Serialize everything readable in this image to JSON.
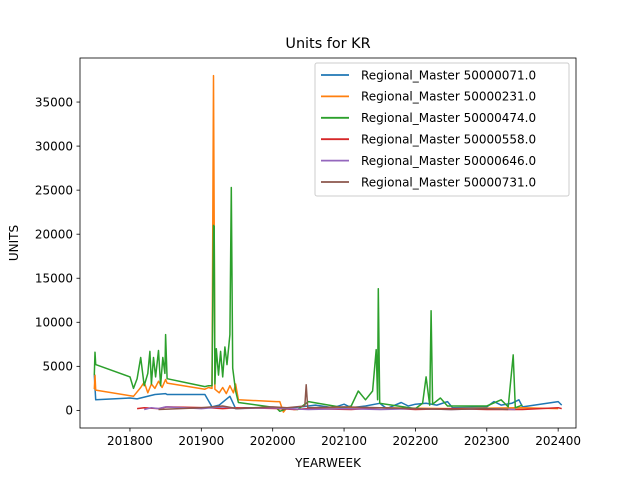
{
  "chart_data": {
    "type": "line",
    "title": "Units for KR",
    "xlabel": "YEARWEEK",
    "ylabel": "UNITS",
    "xlim": [
      201730,
      202425
    ],
    "ylim": [
      -2000,
      40000
    ],
    "xticks": [
      201800,
      201900,
      202000,
      202100,
      202200,
      202300,
      202400
    ],
    "yticks": [
      0,
      5000,
      10000,
      15000,
      20000,
      25000,
      30000,
      35000
    ],
    "grid": false,
    "legend_position": "top-right",
    "series": [
      {
        "name": "Regional_Master 50000071.0",
        "color": "#1f77b4",
        "points": [
          [
            201750,
            4000
          ],
          [
            201752,
            1200
          ],
          [
            201800,
            1400
          ],
          [
            201810,
            1300
          ],
          [
            201835,
            1800
          ],
          [
            201850,
            1900
          ],
          [
            201852,
            1800
          ],
          [
            201905,
            1800
          ],
          [
            201915,
            400
          ],
          [
            201925,
            600
          ],
          [
            201940,
            1600
          ],
          [
            201948,
            200
          ],
          [
            201960,
            300
          ],
          [
            202000,
            300
          ],
          [
            202010,
            200
          ],
          [
            202040,
            400
          ],
          [
            202060,
            600
          ],
          [
            202085,
            300
          ],
          [
            202100,
            700
          ],
          [
            202110,
            300
          ],
          [
            202130,
            500
          ],
          [
            202150,
            800
          ],
          [
            202160,
            200
          ],
          [
            202180,
            900
          ],
          [
            202190,
            500
          ],
          [
            202200,
            700
          ],
          [
            202215,
            800
          ],
          [
            202230,
            600
          ],
          [
            202245,
            1000
          ],
          [
            202252,
            300
          ],
          [
            202300,
            400
          ],
          [
            202310,
            1000
          ],
          [
            202320,
            600
          ],
          [
            202335,
            800
          ],
          [
            202345,
            1200
          ],
          [
            202350,
            400
          ],
          [
            202400,
            1000
          ],
          [
            202405,
            600
          ]
        ]
      },
      {
        "name": "Regional_Master 50000231.0",
        "color": "#ff7f0e",
        "points": [
          [
            201750,
            2400
          ],
          [
            201751,
            4000
          ],
          [
            201752,
            2300
          ],
          [
            201805,
            1600
          ],
          [
            201815,
            2600
          ],
          [
            201820,
            3200
          ],
          [
            201825,
            2000
          ],
          [
            201830,
            3000
          ],
          [
            201835,
            2500
          ],
          [
            201840,
            3300
          ],
          [
            201845,
            2600
          ],
          [
            201850,
            3500
          ],
          [
            201852,
            3100
          ],
          [
            201905,
            2400
          ],
          [
            201910,
            2600
          ],
          [
            201915,
            2500
          ],
          [
            201917,
            38000
          ],
          [
            201918,
            21000
          ],
          [
            201919,
            2400
          ],
          [
            201925,
            2000
          ],
          [
            201930,
            2600
          ],
          [
            201935,
            1900
          ],
          [
            201940,
            2800
          ],
          [
            201945,
            2000
          ],
          [
            201948,
            3000
          ],
          [
            201952,
            1200
          ],
          [
            202005,
            1000
          ],
          [
            202010,
            1000
          ],
          [
            202015,
            -200
          ],
          [
            202020,
            300
          ],
          [
            202030,
            100
          ],
          [
            202052,
            200
          ],
          [
            202150,
            300
          ],
          [
            202250,
            200
          ],
          [
            202350,
            300
          ],
          [
            202400,
            200
          ]
        ]
      },
      {
        "name": "Regional_Master 50000474.0",
        "color": "#2ca02c",
        "points": [
          [
            201750,
            4000
          ],
          [
            201751,
            6600
          ],
          [
            201752,
            5200
          ],
          [
            201800,
            3800
          ],
          [
            201805,
            2500
          ],
          [
            201810,
            3600
          ],
          [
            201815,
            6000
          ],
          [
            201820,
            2800
          ],
          [
            201825,
            4200
          ],
          [
            201828,
            6700
          ],
          [
            201830,
            3000
          ],
          [
            201833,
            6000
          ],
          [
            201836,
            3800
          ],
          [
            201840,
            6800
          ],
          [
            201843,
            2800
          ],
          [
            201846,
            6000
          ],
          [
            201849,
            4200
          ],
          [
            201850,
            8600
          ],
          [
            201852,
            3600
          ],
          [
            201905,
            2700
          ],
          [
            201910,
            2800
          ],
          [
            201915,
            2800
          ],
          [
            201917,
            21000
          ],
          [
            201918,
            20900
          ],
          [
            201919,
            3000
          ],
          [
            201921,
            7000
          ],
          [
            201924,
            4000
          ],
          [
            201927,
            6700
          ],
          [
            201930,
            3800
          ],
          [
            201933,
            7200
          ],
          [
            201936,
            5200
          ],
          [
            201940,
            8600
          ],
          [
            201942,
            25300
          ],
          [
            201944,
            4800
          ],
          [
            201948,
            2200
          ],
          [
            201952,
            900
          ],
          [
            202005,
            300
          ],
          [
            202010,
            -100
          ],
          [
            202020,
            200
          ],
          [
            202035,
            100
          ],
          [
            202050,
            1000
          ],
          [
            202100,
            300
          ],
          [
            202110,
            500
          ],
          [
            202120,
            2200
          ],
          [
            202130,
            1200
          ],
          [
            202140,
            2200
          ],
          [
            202145,
            6900
          ],
          [
            202147,
            1200
          ],
          [
            202148,
            13800
          ],
          [
            202150,
            800
          ],
          [
            202200,
            200
          ],
          [
            202210,
            800
          ],
          [
            202215,
            3800
          ],
          [
            202220,
            600
          ],
          [
            202222,
            11300
          ],
          [
            202224,
            700
          ],
          [
            202235,
            1400
          ],
          [
            202245,
            500
          ],
          [
            202300,
            500
          ],
          [
            202320,
            1200
          ],
          [
            202330,
            400
          ],
          [
            202337,
            6300
          ],
          [
            202340,
            300
          ],
          [
            202350,
            600
          ]
        ]
      },
      {
        "name": "Regional_Master 50000558.0",
        "color": "#d62728",
        "points": [
          [
            201810,
            200
          ],
          [
            201820,
            300
          ],
          [
            201840,
            200
          ],
          [
            201852,
            400
          ],
          [
            201910,
            300
          ],
          [
            201930,
            200
          ],
          [
            201950,
            300
          ],
          [
            202010,
            200
          ],
          [
            202030,
            100
          ],
          [
            202050,
            200
          ],
          [
            202110,
            100
          ],
          [
            202150,
            300
          ],
          [
            202200,
            100
          ],
          [
            202250,
            200
          ],
          [
            202300,
            100
          ],
          [
            202350,
            100
          ],
          [
            202400,
            300
          ],
          [
            202405,
            200
          ]
        ]
      },
      {
        "name": "Regional_Master 50000646.0",
        "color": "#9467bd",
        "points": [
          [
            201820,
            100
          ],
          [
            201830,
            300
          ],
          [
            201840,
            200
          ],
          [
            201850,
            400
          ],
          [
            201900,
            200
          ],
          [
            201930,
            400
          ],
          [
            201950,
            200
          ],
          [
            202000,
            300
          ],
          [
            202020,
            200
          ],
          [
            202050,
            100
          ],
          [
            202100,
            200
          ],
          [
            202150,
            100
          ],
          [
            202200,
            200
          ],
          [
            202250,
            100
          ],
          [
            202300,
            200
          ],
          [
            202340,
            100
          ]
        ]
      },
      {
        "name": "Regional_Master 50000731.0",
        "color": "#8c564b",
        "points": [
          [
            201840,
            100
          ],
          [
            201900,
            300
          ],
          [
            201930,
            500
          ],
          [
            201950,
            200
          ],
          [
            202000,
            400
          ],
          [
            202020,
            300
          ],
          [
            202045,
            500
          ],
          [
            202047,
            2900
          ],
          [
            202049,
            300
          ],
          [
            202100,
            400
          ],
          [
            202150,
            300
          ],
          [
            202200,
            200
          ],
          [
            202250,
            100
          ],
          [
            202300,
            200
          ],
          [
            202330,
            100
          ]
        ]
      }
    ]
  }
}
